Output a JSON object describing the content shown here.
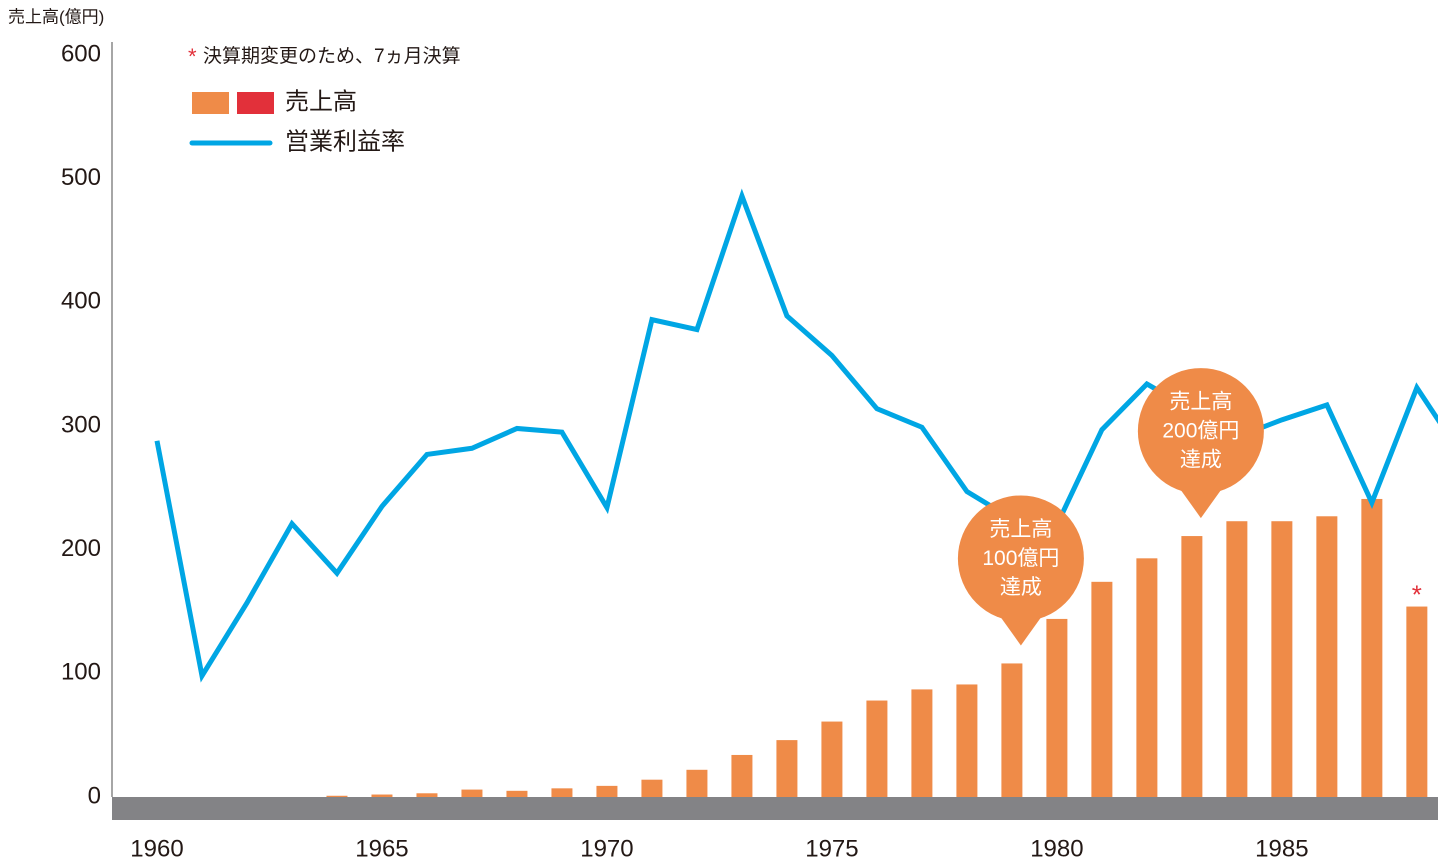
{
  "chart_data": {
    "type": "combo",
    "ylabel": "売上高(億円)",
    "note": "決算期変更のため、7ヵ月決算",
    "asterisk": "*",
    "xlim": [
      1959,
      1988.47
    ],
    "xticks": [
      1960,
      1965,
      1970,
      1975,
      1980,
      1985
    ],
    "ylim": [
      0,
      600
    ],
    "yticks": [
      0,
      100,
      200,
      300,
      400,
      500,
      600
    ],
    "series": [
      {
        "name": "売上高",
        "type": "bar",
        "color": "#ef8b48",
        "colors": [
          "#ef8b48",
          "#e2303a"
        ],
        "x": [
          1964,
          1965,
          1966,
          1967,
          1968,
          1969,
          1970,
          1971,
          1972,
          1973,
          1974,
          1975,
          1976,
          1977,
          1978,
          1979,
          1980,
          1981,
          1982,
          1983,
          1984,
          1985,
          1986,
          1987,
          1988
        ],
        "values": [
          1,
          2,
          3,
          6,
          5,
          7,
          9,
          14,
          22,
          34,
          46,
          61,
          78,
          87,
          91,
          108,
          144,
          174,
          193,
          211,
          223,
          223,
          227,
          241,
          154
        ]
      },
      {
        "name": "営業利益率",
        "type": "line",
        "color": "#00a6e4",
        "x": [
          1960,
          1961,
          1962,
          1963,
          1964,
          1965,
          1966,
          1967,
          1968,
          1969,
          1970,
          1971,
          1972,
          1973,
          1974,
          1975,
          1976,
          1977,
          1978,
          1979,
          1980,
          1981,
          1982,
          1983,
          1984,
          1985,
          1986,
          1987,
          1988,
          1989
        ],
        "values": [
          288,
          98,
          157,
          221,
          181,
          235,
          277,
          282,
          298,
          295,
          234,
          386,
          378,
          486,
          389,
          357,
          314,
          299,
          247,
          225,
          220,
          297,
          334,
          313,
          291,
          305,
          317,
          238,
          331,
          276
        ]
      }
    ],
    "annotations": [
      {
        "x": 1979,
        "lines": [
          "売上高",
          "100億円",
          "達成"
        ]
      },
      {
        "x": 1983,
        "lines": [
          "売上高",
          "200億円",
          "達成"
        ]
      }
    ],
    "asterisk_x": 1988
  }
}
